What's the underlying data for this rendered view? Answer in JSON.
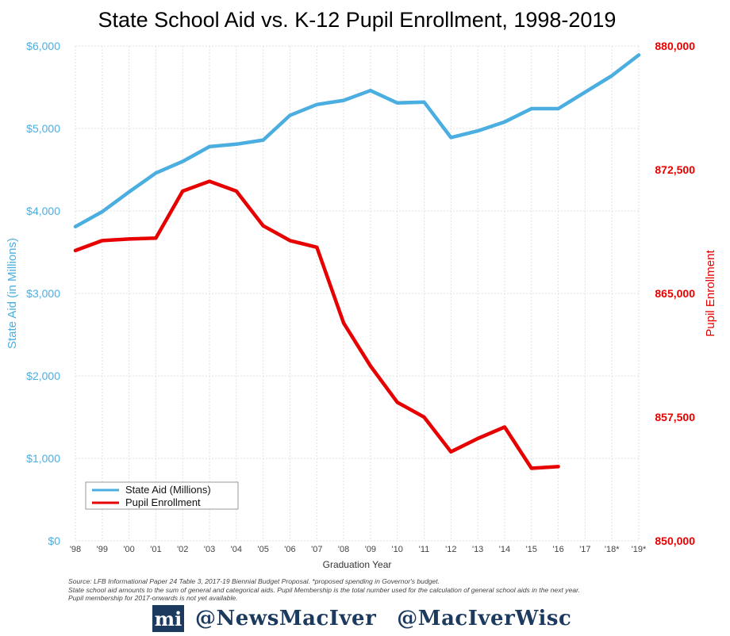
{
  "title": "State School Aid vs. K-12 Pupil Enrollment, 1998-2019",
  "chart_data": {
    "type": "line",
    "title": "State School Aid vs. K-12 Pupil Enrollment, 1998-2019",
    "xlabel": "Graduation Year",
    "ylabel_left": "State Aid (in Millions)",
    "ylabel_right": "Pupil Enrollment",
    "categories": [
      "'98",
      "'99",
      "'00",
      "'01",
      "'02",
      "'03",
      "'04",
      "'05",
      "'06",
      "'07",
      "'08",
      "'09",
      "'10",
      "'11",
      "'12",
      "'13",
      "'14",
      "'15",
      "'16",
      "'17",
      "'18*",
      "'19*"
    ],
    "y_left": {
      "lim": [
        0,
        6000
      ],
      "ticks": [
        "$0",
        "$1,000",
        "$2,000",
        "$3,000",
        "$4,000",
        "$5,000",
        "$6,000"
      ],
      "tick_values": [
        0,
        1000,
        2000,
        3000,
        4000,
        5000,
        6000
      ]
    },
    "y_right": {
      "lim": [
        850000,
        880000
      ],
      "ticks": [
        "850,000",
        "857,500",
        "865,000",
        "872,500",
        "880,000"
      ],
      "tick_values": [
        850000,
        857500,
        865000,
        872500,
        880000
      ]
    },
    "grid": true,
    "legend_position": "bottom-left",
    "series": [
      {
        "name": "State Aid (Millions)",
        "axis": "left",
        "color": "#4BAEE0",
        "values": [
          3810,
          3990,
          4230,
          4460,
          4600,
          4780,
          4810,
          4860,
          5160,
          5290,
          5340,
          5460,
          5310,
          5320,
          4890,
          4970,
          5080,
          5240,
          5240,
          5440,
          5640,
          5890
        ]
      },
      {
        "name": "Pupil Enrollment",
        "axis": "right",
        "color": "#E60000",
        "values": [
          867600,
          868200,
          868300,
          868350,
          871200,
          871800,
          871200,
          869100,
          868200,
          867800,
          863200,
          860600,
          858400,
          857500,
          855400,
          856200,
          856900,
          854400,
          854500,
          null,
          null,
          null
        ]
      }
    ]
  },
  "source_lines": [
    "Source: LFB Informational Paper 24 Table 3, 2017-19 Biennial Budget Proposal. *proposed spending in Governor's budget.",
    "State school aid amounts to the sum of general and categorical aids. Pupil Membership is the total number used for the calculation of general school aids in the next year.",
    "Pupil membership for 2017-onwards is not yet available."
  ],
  "footer": {
    "logo_text": "mi",
    "handle_1": "@NewsMacIver",
    "handle_2": "@MacIverWisc",
    "brand_color": "#1C3A5E"
  }
}
